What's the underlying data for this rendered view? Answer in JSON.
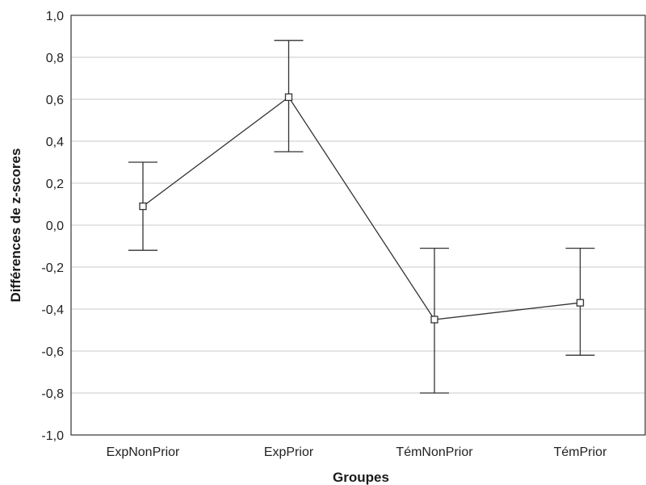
{
  "chart_data": {
    "type": "line",
    "xlabel": "Groupes",
    "ylabel": "Différences de z-scores",
    "ylim": [
      -1.0,
      1.0
    ],
    "yticks": [
      1.0,
      0.8,
      0.6,
      0.4,
      0.2,
      0.0,
      -0.2,
      -0.4,
      -0.6,
      -0.8,
      -1.0
    ],
    "ytick_labels": [
      "1,0",
      "0,8",
      "0,6",
      "0,4",
      "0,2",
      "0,0",
      "-0,2",
      "-0,4",
      "-0,6",
      "-0,8",
      "-1,0"
    ],
    "categories": [
      "ExpNonPrior",
      "ExpPrior",
      "TémNonPrior",
      "TémPrior"
    ],
    "series": [
      {
        "values": [
          0.09,
          0.61,
          -0.45,
          -0.37
        ],
        "error_upper": [
          0.3,
          0.88,
          -0.11,
          -0.11
        ],
        "error_lower": [
          -0.12,
          0.35,
          -0.8,
          -0.62
        ]
      }
    ],
    "grid": true,
    "line_color": "#333333",
    "grid_color": "#c8c8c8"
  }
}
